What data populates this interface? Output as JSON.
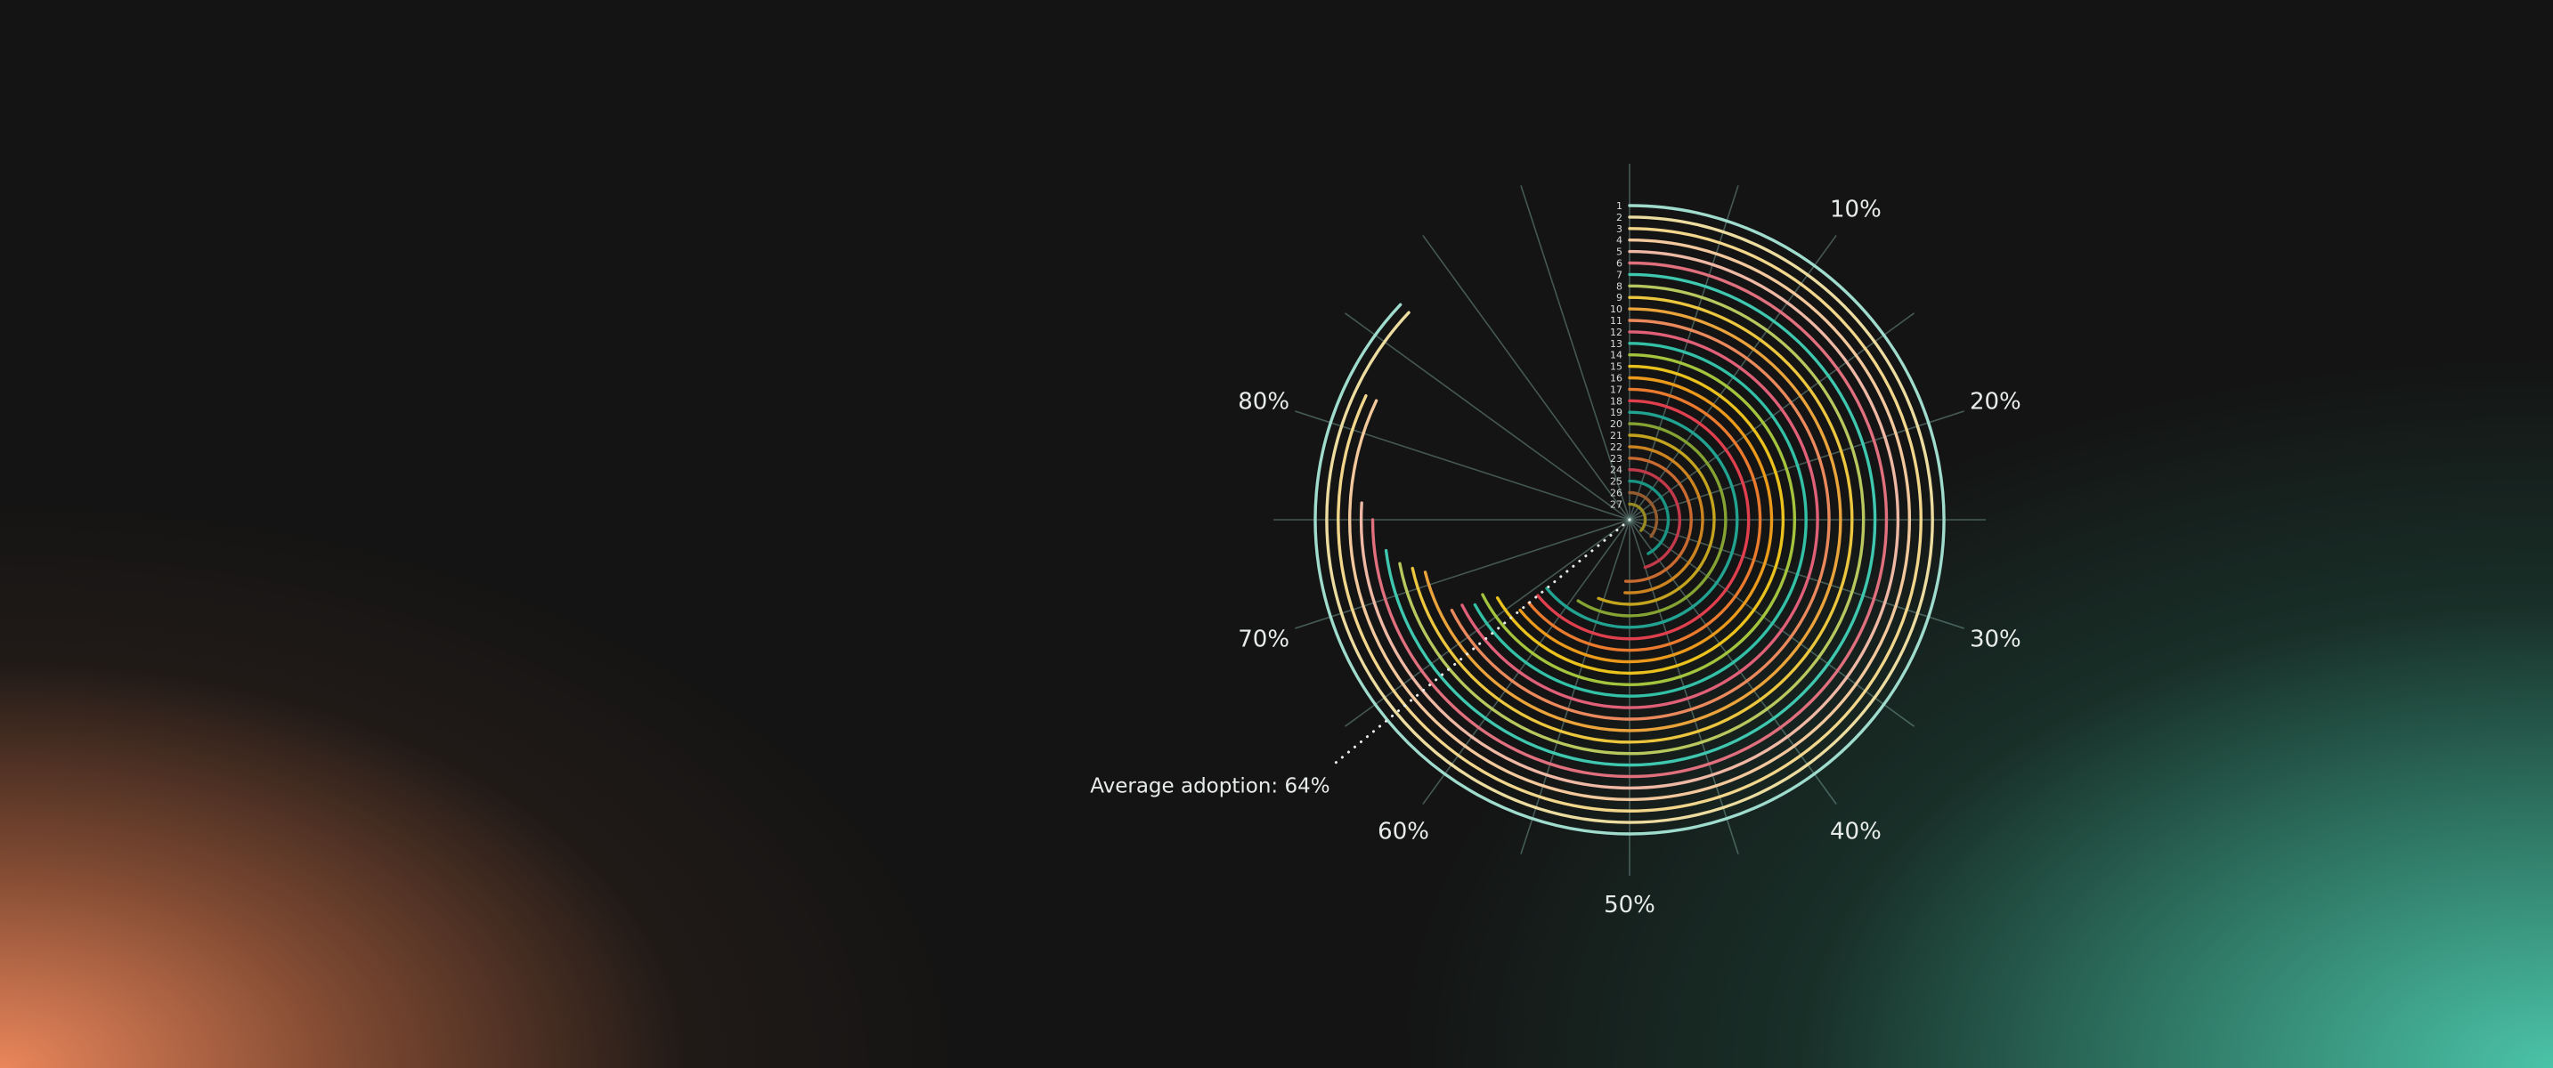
{
  "chart_data": {
    "type": "radial-bar",
    "categories": [
      "1",
      "2",
      "3",
      "4",
      "5",
      "6",
      "7",
      "8",
      "9",
      "10",
      "11",
      "12",
      "13",
      "14",
      "15",
      "16",
      "17",
      "18",
      "19",
      "20",
      "21",
      "22",
      "23",
      "24",
      "25",
      "26",
      "27"
    ],
    "values": [
      87,
      87,
      82,
      82,
      76,
      75,
      73,
      72,
      71.5,
      71,
      67.5,
      67.5,
      67,
      67.5,
      66.5,
      64,
      64,
      64,
      64,
      59,
      56,
      51,
      51,
      45,
      42,
      35.5,
      37
    ],
    "unit": "%",
    "range": [
      0,
      100
    ],
    "tick_labels": [
      "10%",
      "20%",
      "30%",
      "40%",
      "50%",
      "60%",
      "70%",
      "80%"
    ],
    "tick_values": [
      10,
      20,
      30,
      40,
      50,
      60,
      70,
      80
    ],
    "grid": true,
    "colors": [
      "#9fdccd",
      "#ecdca0",
      "#f2d68c",
      "#f3c89c",
      "#eeb8a4",
      "#e0707e",
      "#3fc7af",
      "#b9c85e",
      "#ecc63e",
      "#eba43c",
      "#ea8a5c",
      "#e06078",
      "#33c0a6",
      "#a4c43e",
      "#ebc11e",
      "#eb9a1c",
      "#e97a2e",
      "#e0404e",
      "#22a391",
      "#84a332",
      "#c4a41e",
      "#cc8420",
      "#c96a30",
      "#c23a4a",
      "#1a9584",
      "#955c30",
      "#988a22"
    ],
    "annotation": {
      "label": "Average adoption: 64%",
      "value": 64
    }
  }
}
